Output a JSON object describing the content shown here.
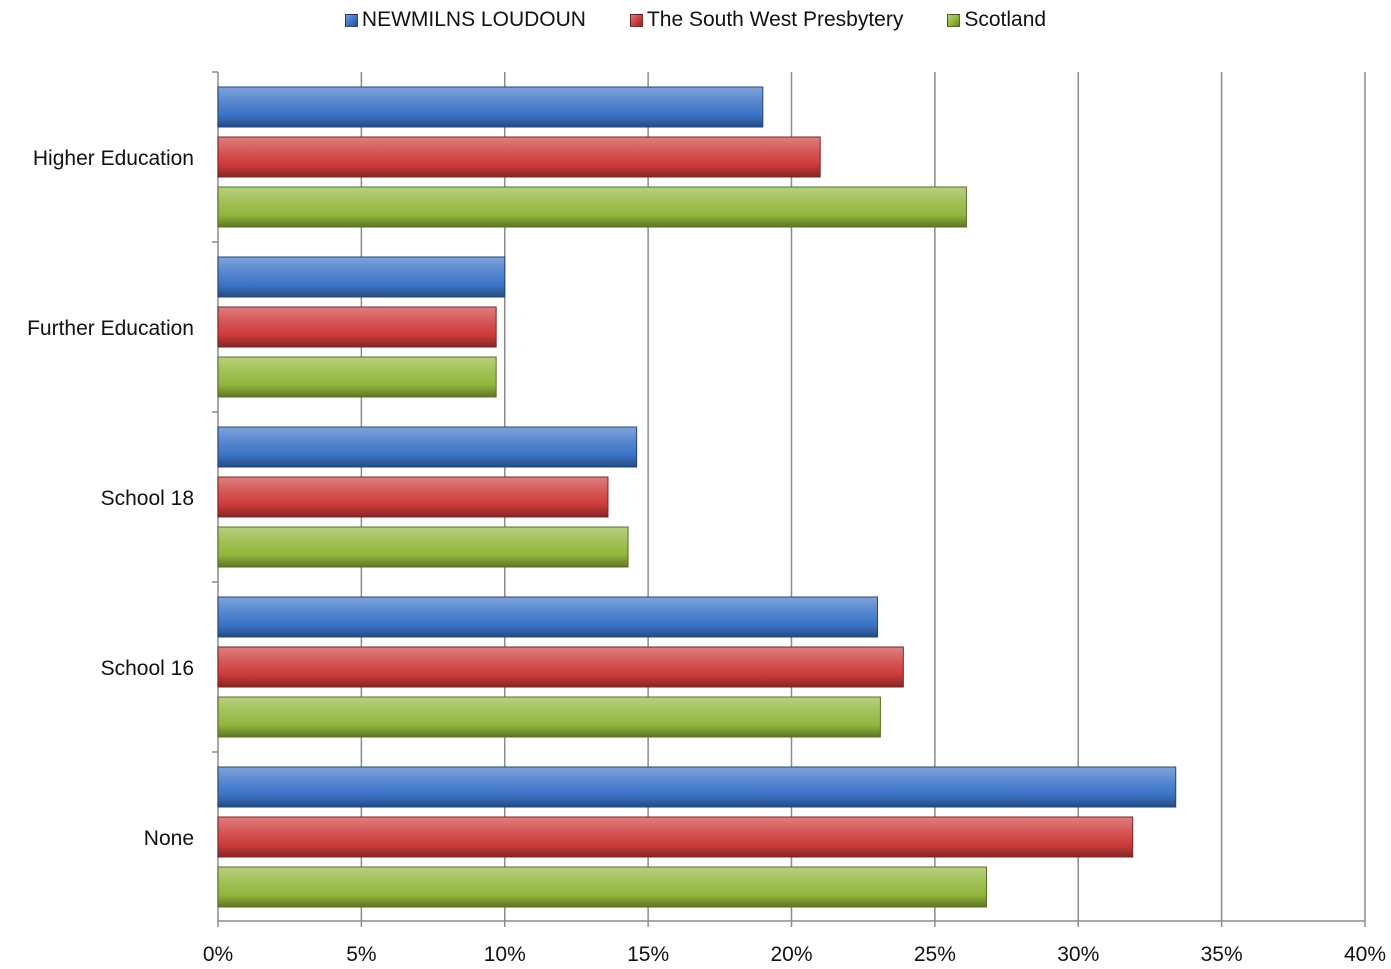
{
  "chart_data": {
    "type": "bar",
    "orientation": "horizontal",
    "categories": [
      "Higher Education",
      "Further Education",
      "School 18",
      "School 16",
      "None"
    ],
    "series": [
      {
        "name": "NEWMILNS LOUDOUN",
        "color": "#3b73c6",
        "values": [
          19.0,
          10.0,
          14.6,
          23.0,
          33.4
        ]
      },
      {
        "name": "The South West Presbytery",
        "color": "#cd3a3a",
        "values": [
          21.0,
          9.7,
          13.6,
          23.9,
          31.9
        ]
      },
      {
        "name": "Scotland",
        "color": "#92b63c",
        "values": [
          26.1,
          9.7,
          14.3,
          23.1,
          26.8
        ]
      }
    ],
    "xlim": [
      0,
      40
    ],
    "xticks": [
      0,
      5,
      10,
      15,
      20,
      25,
      30,
      35,
      40
    ],
    "xtick_labels": [
      "0%",
      "5%",
      "10%",
      "15%",
      "20%",
      "25%",
      "30%",
      "35%",
      "40%"
    ],
    "grid": true,
    "legend_position": "top"
  }
}
